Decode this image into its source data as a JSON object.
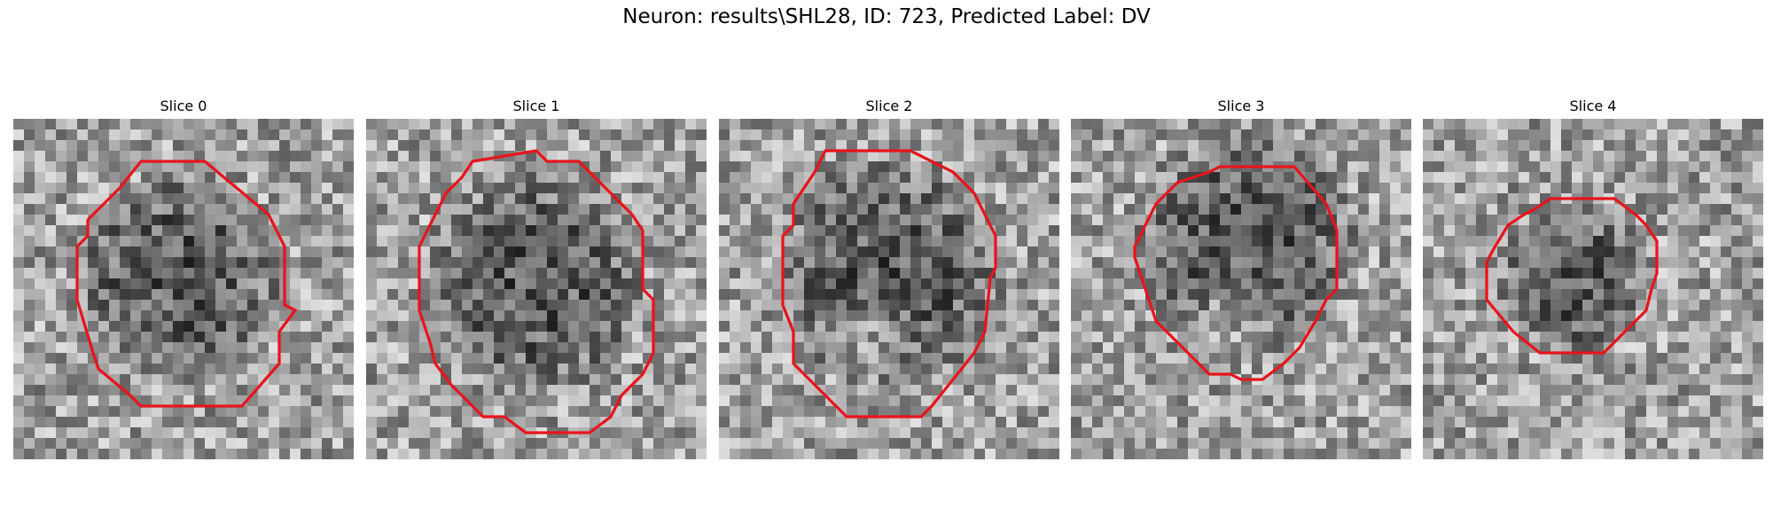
{
  "figure": {
    "title": "Neuron: results\\SHL28, ID: 723, Predicted Label: DV",
    "contour_color": "#e8141c",
    "image_colormap": "grayscale",
    "grid_size": 32,
    "panels": [
      {
        "title": "Slice 0",
        "seed": 11,
        "dark_center": [
          15.5,
          15.0
        ],
        "dark_radius": 10.5,
        "bright_center": null,
        "contour": [
          [
            12,
            4
          ],
          [
            18,
            4
          ],
          [
            24,
            9
          ],
          [
            25.5,
            12
          ],
          [
            25.5,
            17.5
          ],
          [
            26.5,
            18
          ],
          [
            25,
            20
          ],
          [
            25,
            23
          ],
          [
            21.5,
            27
          ],
          [
            21,
            27
          ],
          [
            18,
            27
          ],
          [
            12,
            27
          ],
          [
            11,
            26
          ],
          [
            8,
            23.5
          ],
          [
            7.5,
            22
          ],
          [
            6,
            17
          ],
          [
            6,
            12
          ],
          [
            7,
            11
          ],
          [
            7,
            9.5
          ],
          [
            10,
            6.5
          ]
        ]
      },
      {
        "title": "Slice 1",
        "seed": 23,
        "dark_center": [
          16.0,
          15.5
        ],
        "dark_radius": 11.0,
        "bright_center": null,
        "contour": [
          [
            16,
            3
          ],
          [
            17,
            4
          ],
          [
            20,
            4
          ],
          [
            23,
            7
          ],
          [
            25,
            9
          ],
          [
            26,
            10.5
          ],
          [
            26,
            16
          ],
          [
            27,
            17
          ],
          [
            27,
            22
          ],
          [
            26,
            24
          ],
          [
            24,
            26
          ],
          [
            23,
            28
          ],
          [
            21,
            29.5
          ],
          [
            15,
            29.5
          ],
          [
            13,
            28
          ],
          [
            11,
            28
          ],
          [
            8,
            25
          ],
          [
            6.5,
            23
          ],
          [
            6,
            21
          ],
          [
            5,
            18
          ],
          [
            5,
            12
          ],
          [
            6.5,
            9
          ],
          [
            7.5,
            7
          ],
          [
            9,
            5.5
          ],
          [
            10,
            4
          ]
        ]
      },
      {
        "title": "Slice 2",
        "seed": 37,
        "dark_center": [
          16.0,
          14.5
        ],
        "dark_radius": 11.5,
        "bright_center": [
          14.0,
          20.5
        ],
        "contour": [
          [
            10,
            3
          ],
          [
            18,
            3
          ],
          [
            22,
            5
          ],
          [
            24,
            7
          ],
          [
            25,
            9
          ],
          [
            26,
            11
          ],
          [
            26,
            14
          ],
          [
            25.5,
            15
          ],
          [
            25,
            20
          ],
          [
            24,
            22
          ],
          [
            20,
            27
          ],
          [
            19,
            28
          ],
          [
            12,
            28
          ],
          [
            10,
            26
          ],
          [
            9,
            25
          ],
          [
            7,
            23
          ],
          [
            7,
            20
          ],
          [
            6,
            17.5
          ],
          [
            6,
            11
          ],
          [
            7,
            10
          ],
          [
            7,
            8
          ],
          [
            9,
            5
          ]
        ]
      },
      {
        "title": "Slice 3",
        "seed": 53,
        "dark_center": [
          16.5,
          11.5
        ],
        "dark_radius": 11.0,
        "bright_center": [
          15.5,
          18.0
        ],
        "contour": [
          [
            13,
            5
          ],
          [
            14,
            4.5
          ],
          [
            21,
            4.5
          ],
          [
            24,
            8
          ],
          [
            25,
            10.5
          ],
          [
            25,
            16
          ],
          [
            24,
            17
          ],
          [
            23,
            19
          ],
          [
            21.5,
            21.5
          ],
          [
            20,
            23
          ],
          [
            18,
            24.5
          ],
          [
            16,
            24.5
          ],
          [
            15,
            24
          ],
          [
            13,
            24
          ],
          [
            12,
            23
          ],
          [
            10,
            21
          ],
          [
            8,
            19
          ],
          [
            7,
            16
          ],
          [
            6,
            13
          ],
          [
            6,
            12
          ],
          [
            7,
            10
          ],
          [
            8,
            8
          ],
          [
            10,
            6
          ]
        ]
      },
      {
        "title": "Slice 4",
        "seed": 71,
        "dark_center": [
          14.0,
          15.0
        ],
        "dark_radius": 7.5,
        "bright_center": null,
        "contour": [
          [
            12,
            7.5
          ],
          [
            18,
            7.5
          ],
          [
            20,
            9
          ],
          [
            21,
            10
          ],
          [
            22,
            11.5
          ],
          [
            22,
            14.5
          ],
          [
            21.5,
            16
          ],
          [
            21,
            18
          ],
          [
            19,
            20
          ],
          [
            17,
            22
          ],
          [
            15,
            22
          ],
          [
            11,
            22
          ],
          [
            8.5,
            20
          ],
          [
            6,
            17
          ],
          [
            6,
            13.5
          ],
          [
            6.5,
            12.5
          ],
          [
            8,
            10
          ],
          [
            9.5,
            9
          ],
          [
            10.5,
            8.5
          ]
        ]
      }
    ]
  }
}
